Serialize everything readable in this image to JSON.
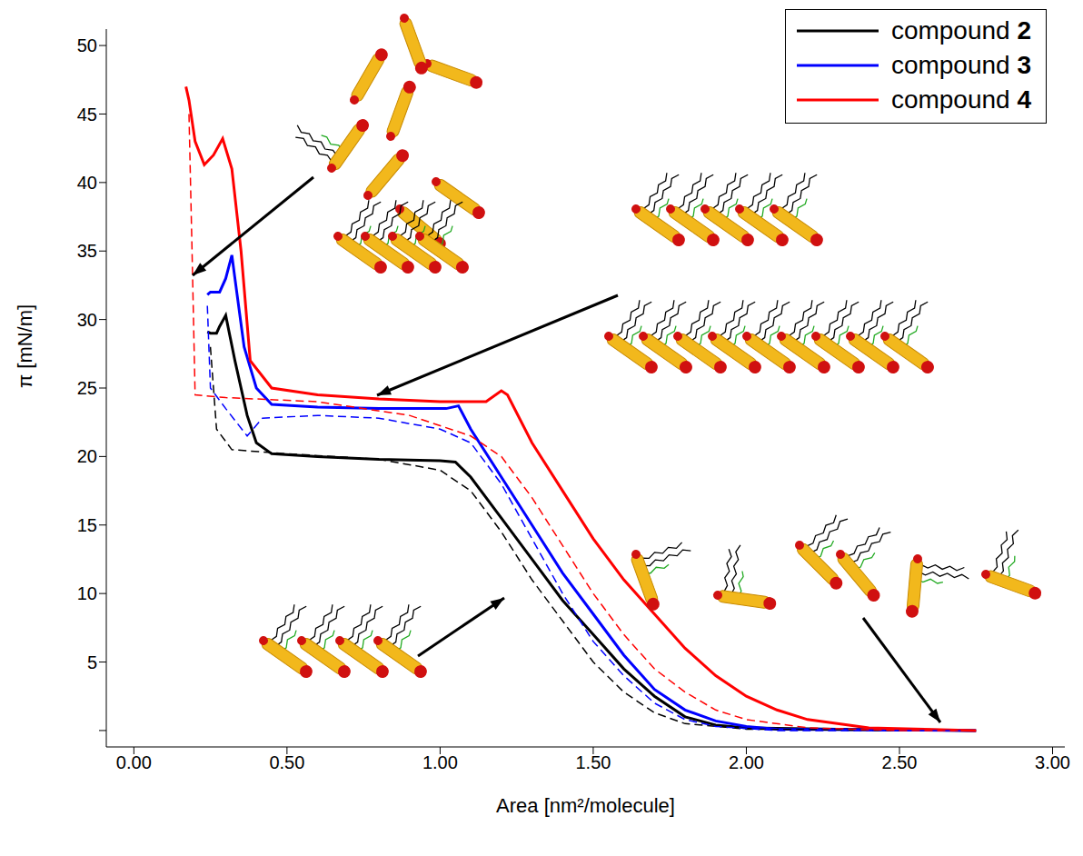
{
  "chart_data": {
    "type": "line",
    "x_label": "Area [nm²/molecule]",
    "y_label": "π [mN/m]",
    "xlim": [
      -0.09,
      3.04
    ],
    "xticks": [
      {
        "value": 0,
        "label": "0.00"
      },
      {
        "value": 0.5,
        "label": "0.50"
      },
      {
        "value": 1,
        "label": "1.00"
      },
      {
        "value": 1.5,
        "label": "1.50"
      },
      {
        "value": 2,
        "label": "2.00"
      },
      {
        "value": 2.5,
        "label": "2.50"
      },
      {
        "value": 3,
        "label": "3.00"
      }
    ],
    "ylim": [
      -1.2,
      51.2
    ],
    "yticks": [
      0,
      5,
      10,
      15,
      20,
      25,
      30,
      35,
      40,
      45,
      50
    ],
    "grid": false,
    "legend": "top-right",
    "series": [
      {
        "name": "compound 2",
        "color": "#000000",
        "line_style": "solid",
        "x": [
          2.75,
          2.3,
          2.0,
          1.9,
          1.8,
          1.7,
          1.6,
          1.5,
          1.4,
          1.3,
          1.2,
          1.1,
          1.05,
          1.0,
          0.8,
          0.6,
          0.45,
          0.4,
          0.37,
          0.33,
          0.3,
          0.28,
          0.27,
          0.25,
          0.24
        ],
        "values": [
          0,
          0.1,
          0.2,
          0.4,
          1.0,
          2.5,
          4.5,
          7,
          9.5,
          12.5,
          15.5,
          18.5,
          19.6,
          19.7,
          19.8,
          20,
          20.2,
          21,
          23,
          27,
          30.3,
          29.5,
          29,
          29,
          29.1
        ]
      },
      {
        "name": "compound 3",
        "color": "#0000ff",
        "line_style": "solid",
        "x": [
          2.75,
          2.1,
          2.0,
          1.9,
          1.8,
          1.7,
          1.6,
          1.5,
          1.4,
          1.3,
          1.2,
          1.1,
          1.06,
          1.02,
          0.8,
          0.6,
          0.45,
          0.4,
          0.36,
          0.33,
          0.32,
          0.3,
          0.28,
          0.25,
          0.24
        ],
        "values": [
          0,
          0.1,
          0.3,
          0.7,
          1.5,
          3,
          5.5,
          8.5,
          11.5,
          15,
          18.5,
          22,
          23.7,
          23.5,
          23.5,
          23.6,
          23.8,
          25,
          28,
          33,
          34.7,
          33,
          32,
          32,
          31.8
        ]
      },
      {
        "name": "compound 4",
        "color": "#ff0000",
        "line_style": "solid",
        "x": [
          2.75,
          2.4,
          2.2,
          2.1,
          2.0,
          1.9,
          1.8,
          1.7,
          1.6,
          1.5,
          1.4,
          1.3,
          1.22,
          1.2,
          1.15,
          1.0,
          0.8,
          0.6,
          0.45,
          0.38,
          0.35,
          0.32,
          0.29,
          0.26,
          0.23,
          0.2,
          0.18,
          0.17
        ],
        "values": [
          0,
          0.2,
          0.8,
          1.5,
          2.5,
          4,
          6,
          8.5,
          11,
          14,
          17.5,
          21,
          24.5,
          24.8,
          24,
          24,
          24.2,
          24.5,
          25,
          27,
          35,
          41,
          43.2,
          42,
          41.3,
          43,
          46,
          47
        ]
      },
      {
        "color": "#000000",
        "line_style": "dashed",
        "x": [
          0.25,
          0.27,
          0.32,
          0.5,
          0.8,
          1.0,
          1.1,
          1.2,
          1.3,
          1.4,
          1.5,
          1.6,
          1.7,
          1.8,
          2.0,
          2.5
        ],
        "values": [
          28,
          22,
          20.5,
          20.2,
          19.8,
          19,
          17.5,
          14.5,
          11,
          8,
          5,
          2.8,
          1.3,
          0.5,
          0.1,
          0
        ]
      },
      {
        "color": "#0000ff",
        "line_style": "dashed",
        "x": [
          0.24,
          0.25,
          0.3,
          0.37,
          0.42,
          0.6,
          0.8,
          1.0,
          1.1,
          1.2,
          1.3,
          1.4,
          1.5,
          1.6,
          1.7,
          1.8,
          1.9,
          2.1,
          2.7
        ],
        "values": [
          31,
          25,
          23.5,
          21.5,
          22.8,
          23,
          22.8,
          22,
          21,
          18,
          14,
          10,
          6.5,
          4,
          2,
          0.8,
          0.3,
          0,
          0
        ]
      },
      {
        "color": "#ff0000",
        "line_style": "dashed",
        "x": [
          0.18,
          0.19,
          0.2,
          0.3,
          0.6,
          0.9,
          1.1,
          1.2,
          1.3,
          1.4,
          1.5,
          1.6,
          1.7,
          1.8,
          1.9,
          2.0,
          2.2,
          2.5,
          2.75
        ],
        "values": [
          45,
          35,
          24.5,
          24.3,
          24,
          23,
          21.5,
          20,
          17,
          13.5,
          10,
          7,
          4.5,
          2.8,
          1.5,
          0.8,
          0.2,
          0,
          0
        ]
      }
    ]
  }
}
